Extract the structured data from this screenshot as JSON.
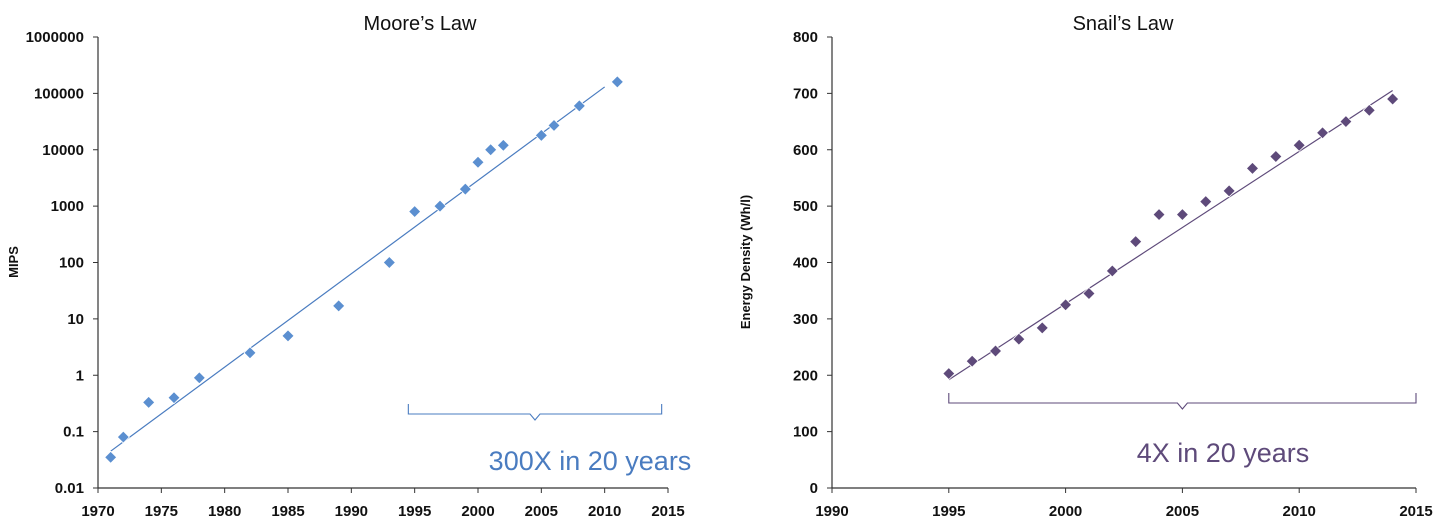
{
  "colors": {
    "moore": "#5b8fd0",
    "moore_line": "#4a7cc0",
    "snail": "#5e4a7a",
    "snail_line": "#5e4a7a"
  },
  "chart_data": [
    {
      "type": "scatter",
      "title": "Moore’s Law",
      "xlabel": "",
      "ylabel": "MIPS",
      "yscale": "log",
      "xlim": [
        1970,
        2015
      ],
      "ylim": [
        0.01,
        1000000
      ],
      "xticks": [
        "1970",
        "1975",
        "1980",
        "1985",
        "1990",
        "1995",
        "2000",
        "2005",
        "2010",
        "2015"
      ],
      "yticks": [
        "0.01",
        "0.1",
        "1",
        "10",
        "100",
        "1000",
        "10000",
        "100000",
        "1000000"
      ],
      "series": [
        {
          "x": [
            1971,
            1972,
            1974,
            1976,
            1978,
            1982,
            1985,
            1989,
            1993,
            1995,
            1997,
            1999,
            2000,
            2001,
            2002,
            2005,
            2006,
            2008,
            2011
          ],
          "y": [
            0.035,
            0.08,
            0.33,
            0.4,
            0.9,
            2.5,
            5,
            17,
            100,
            800,
            1000,
            2000,
            6000,
            10000,
            12000,
            18000,
            27000,
            60000,
            160000
          ]
        }
      ],
      "trendline": {
        "x": [
          1971,
          2010
        ],
        "y": [
          0.045,
          130000
        ]
      },
      "annotation": {
        "text": "300X in 20 years",
        "x_start": 1994.5,
        "x_end": 2014.5
      }
    },
    {
      "type": "scatter",
      "title": "Snail’s Law",
      "xlabel": "",
      "ylabel": "Energy Density (Wh/l)",
      "xlim": [
        1990,
        2015
      ],
      "ylim": [
        0,
        800
      ],
      "xticks": [
        "1990",
        "1995",
        "2000",
        "2005",
        "2010",
        "2015"
      ],
      "yticks": [
        "0",
        "100",
        "200",
        "300",
        "400",
        "500",
        "600",
        "700",
        "800"
      ],
      "series": [
        {
          "x": [
            1995,
            1996,
            1997,
            1998,
            1999,
            2000,
            2001,
            2002,
            2003,
            2004,
            2005,
            2006,
            2007,
            2008,
            2009,
            2010,
            2011,
            2012,
            2013,
            2014
          ],
          "y": [
            203,
            225,
            243,
            264,
            284,
            325,
            345,
            385,
            437,
            485,
            485,
            508,
            527,
            567,
            588,
            608,
            630,
            650,
            670,
            690
          ]
        }
      ],
      "trendline": {
        "x": [
          1995,
          2014
        ],
        "y": [
          192,
          705
        ]
      },
      "annotation": {
        "text": "4X in 20 years",
        "x_start": 1995,
        "x_end": 2015
      }
    }
  ]
}
